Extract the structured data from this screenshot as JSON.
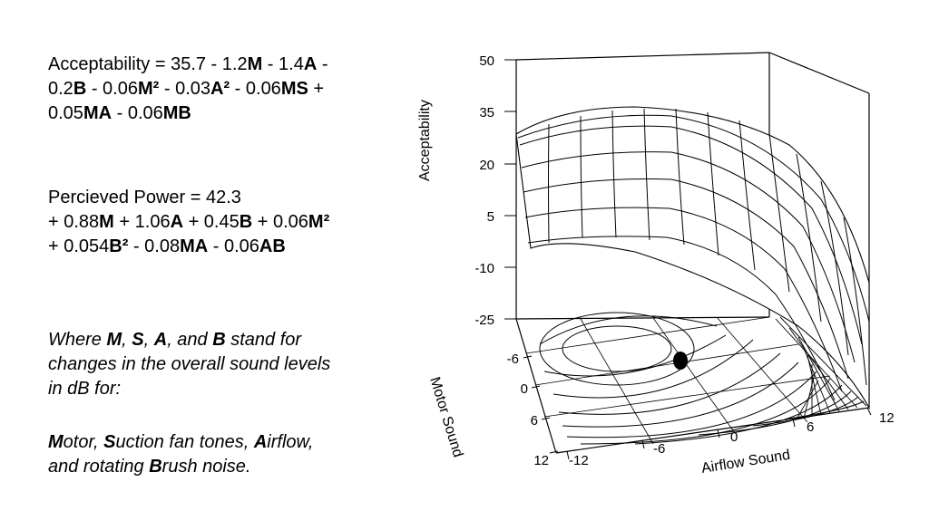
{
  "acceptability_eq": {
    "line1": [
      {
        "t": "Acceptability = 35.7 - 1.2",
        "b": false
      },
      {
        "t": "M",
        "b": true
      },
      {
        "t": " - 1.4",
        "b": false
      },
      {
        "t": "A",
        "b": true
      },
      {
        "t": " -",
        "b": false
      }
    ],
    "line2": [
      {
        "t": "0.2",
        "b": false
      },
      {
        "t": "B",
        "b": true
      },
      {
        "t": " - 0.06",
        "b": false
      },
      {
        "t": "M²",
        "b": true
      },
      {
        "t": " - 0.03",
        "b": false
      },
      {
        "t": "A²",
        "b": true
      },
      {
        "t": " - 0.06",
        "b": false
      },
      {
        "t": "MS",
        "b": true
      },
      {
        "t": " +",
        "b": false
      }
    ],
    "line3": [
      {
        "t": "0.05",
        "b": false
      },
      {
        "t": "MA",
        "b": true
      },
      {
        "t": " - 0.06",
        "b": false
      },
      {
        "t": "MB",
        "b": true
      }
    ]
  },
  "power_eq": {
    "line1": [
      {
        "t": "Percieved Power = 42.3",
        "b": false
      }
    ],
    "line2": [
      {
        "t": "+ 0.88",
        "b": false
      },
      {
        "t": "M",
        "b": true
      },
      {
        "t": " + 1.06",
        "b": false
      },
      {
        "t": "A",
        "b": true
      },
      {
        "t": " + 0.45",
        "b": false
      },
      {
        "t": "B",
        "b": true
      },
      {
        "t": " + 0.06",
        "b": false
      },
      {
        "t": "M²",
        "b": true
      }
    ],
    "line3": [
      {
        "t": "+ 0.054",
        "b": false
      },
      {
        "t": "B²",
        "b": true
      },
      {
        "t": " - 0.08",
        "b": false
      },
      {
        "t": "MA",
        "b": true
      },
      {
        "t": " - 0.06",
        "b": false
      },
      {
        "t": "AB",
        "b": true
      }
    ]
  },
  "note": {
    "line1": [
      {
        "t": "Where ",
        "b": false
      },
      {
        "t": "M",
        "b": true
      },
      {
        "t": ", ",
        "b": false
      },
      {
        "t": "S",
        "b": true
      },
      {
        "t": ", ",
        "b": false
      },
      {
        "t": "A",
        "b": true
      },
      {
        "t": ", and ",
        "b": false
      },
      {
        "t": "B",
        "b": true
      },
      {
        "t": " stand for",
        "b": false
      }
    ],
    "line2": [
      {
        "t": "changes in the overall sound levels",
        "b": false
      }
    ],
    "line3": [
      {
        "t": "in dB for:",
        "b": false
      }
    ]
  },
  "legend_note": {
    "line1": [
      {
        "t": "M",
        "b": true
      },
      {
        "t": "otor, ",
        "b": false
      },
      {
        "t": "S",
        "b": true
      },
      {
        "t": "uction fan tones, ",
        "b": false
      },
      {
        "t": "A",
        "b": true
      },
      {
        "t": "irflow,",
        "b": false
      }
    ],
    "line2": [
      {
        "t": "and rotating ",
        "b": false
      },
      {
        "t": "B",
        "b": true
      },
      {
        "t": "rush noise.",
        "b": false
      }
    ]
  },
  "plot": {
    "z_axis_title": "Acceptability",
    "z_ticks": [
      "50",
      "35",
      "20",
      "5",
      "-10",
      "-25"
    ],
    "motor_axis_title": "Motor Sound",
    "motor_ticks": [
      "-6",
      "0",
      "6",
      "12"
    ],
    "airflow_axis_title": "Airflow Sound",
    "airflow_ticks": [
      "-12",
      "-6",
      "0",
      "6",
      "12"
    ],
    "surface_color": "#000000",
    "marker_color": "#000000"
  }
}
